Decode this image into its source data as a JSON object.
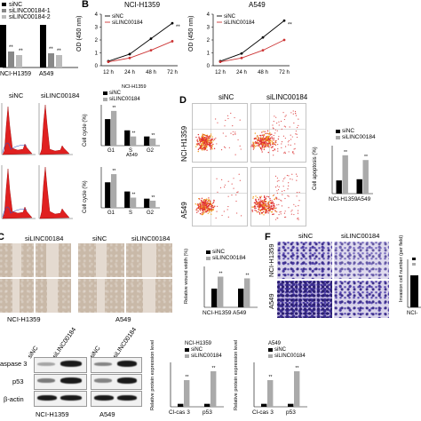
{
  "panels": {
    "A": {
      "legend": [
        "siNC",
        "siLINC00184-1",
        "siLINC00184-2"
      ],
      "xlabels": [
        "NCI-H1359",
        "A549"
      ],
      "sig": [
        "**",
        "**",
        "**",
        "**"
      ]
    },
    "B": {
      "letter": "B",
      "titles": [
        "NCI-H1359",
        "A549"
      ],
      "legend": [
        "siNC",
        "siLINC00184"
      ],
      "ylabel": "OD (450 nm)",
      "xticks": [
        "12 h",
        "24 h",
        "48 h",
        "72 h"
      ],
      "yticks": [
        "0",
        "1",
        "2",
        "3",
        "4"
      ],
      "sig": [
        "**",
        "**",
        "**",
        "**"
      ]
    },
    "C": {
      "headers": [
        "siNC",
        "siLINC00184"
      ],
      "bar_legend": [
        "siNC",
        "siLINC00184"
      ],
      "bar_titles": [
        "NCI-H1359",
        "A549"
      ],
      "ylabel": "Cell cycle (%)",
      "xticks": [
        "G1",
        "S",
        "G2"
      ]
    },
    "D": {
      "letter": "D",
      "headers": [
        "siNC",
        "siLINC00184"
      ],
      "rows": [
        "NCI-H1359",
        "A549"
      ],
      "legend": [
        "siNC",
        "siLINC00184"
      ],
      "ylabel": "Cell apoptosis (%)",
      "xlabels": [
        "NCI-H1359",
        "A549"
      ]
    },
    "E": {
      "letter": "C",
      "headers": [
        "siLINC00184",
        "siNC",
        "siLINC00184"
      ],
      "labels": [
        "NCI-H1359",
        "A549"
      ],
      "legend": [
        "siNC",
        "siLINC00184"
      ],
      "ylabel": "Relative wound width (%)",
      "xlabels": [
        "NCI-H1359",
        "A549"
      ]
    },
    "F": {
      "letter": "F",
      "headers": [
        "siNC",
        "siLINC00184"
      ],
      "rows": [
        "NCI-H1359",
        "A549"
      ],
      "ylabel": "Invasion cell number (per field)",
      "xlabel": "NCI-"
    },
    "G": {
      "headers": [
        "siNC",
        "siLINC00184",
        "siNC",
        "siLINC00184"
      ],
      "rows": [
        "aspase 3",
        "p53",
        "β-actin"
      ],
      "cells": [
        "NCI-H1359",
        "A549"
      ],
      "charts": [
        {
          "title": "NCI-H1359",
          "legend": [
            "siNC",
            "siLINC00184"
          ]
        },
        {
          "title": "A549",
          "legend": [
            "siNC",
            "siLINC00184"
          ]
        }
      ],
      "ylabel": "Relative protein expression level",
      "xticks": [
        "Cl-cas 3",
        "p53"
      ]
    }
  },
  "chart_data": [
    {
      "type": "line",
      "title": "NCI-H1359",
      "xlabel": "",
      "ylabel": "OD (450 nm)",
      "x": [
        "12 h",
        "24 h",
        "48 h",
        "72 h"
      ],
      "ylim": [
        0,
        4
      ],
      "series": [
        {
          "name": "siNC",
          "values": [
            0.35,
            0.9,
            2.1,
            3.3
          ]
        },
        {
          "name": "siLINC00184",
          "values": [
            0.3,
            0.6,
            1.2,
            1.9
          ]
        }
      ],
      "colors": [
        "#000000",
        "#cc3333"
      ]
    },
    {
      "type": "line",
      "title": "A549",
      "xlabel": "",
      "ylabel": "OD (450 nm)",
      "x": [
        "12 h",
        "24 h",
        "48 h",
        "72 h"
      ],
      "ylim": [
        0,
        4
      ],
      "series": [
        {
          "name": "siNC",
          "values": [
            0.35,
            0.95,
            2.2,
            3.5
          ]
        },
        {
          "name": "siLINC00184",
          "values": [
            0.3,
            0.6,
            1.2,
            2.0
          ]
        }
      ],
      "colors": [
        "#000000",
        "#cc3333"
      ]
    },
    {
      "type": "bar",
      "title": "NCI-H1359",
      "ylabel": "Cell cycle (%)",
      "categories": [
        "G1",
        "S",
        "G2"
      ],
      "ylim": [
        0,
        80
      ],
      "series": [
        {
          "name": "siNC",
          "values": [
            52,
            30,
            18
          ]
        },
        {
          "name": "siLINC00184",
          "values": [
            68,
            18,
            14
          ]
        }
      ]
    },
    {
      "type": "bar",
      "title": "A549",
      "ylabel": "Cell cycle (%)",
      "categories": [
        "G1",
        "S",
        "G2"
      ],
      "ylim": [
        0,
        80
      ],
      "series": [
        {
          "name": "siNC",
          "values": [
            50,
            32,
            18
          ]
        },
        {
          "name": "siLINC00184",
          "values": [
            66,
            20,
            14
          ]
        }
      ]
    },
    {
      "type": "bar",
      "ylabel": "Cell apoptosis (%)",
      "categories": [
        "NCI-H1359",
        "A549"
      ],
      "ylim": [
        0,
        40
      ],
      "series": [
        {
          "name": "siNC",
          "values": [
            11,
            12
          ]
        },
        {
          "name": "siLINC00184",
          "values": [
            32,
            28
          ]
        }
      ]
    },
    {
      "type": "bar",
      "ylabel": "Relative wound width (%)",
      "categories": [
        "NCI-H1359",
        "A549"
      ],
      "ylim": [
        0,
        1.2
      ],
      "series": [
        {
          "name": "siNC",
          "values": [
            0.55,
            0.55
          ]
        },
        {
          "name": "siLINC00184",
          "values": [
            0.9,
            0.85
          ]
        }
      ]
    },
    {
      "type": "bar",
      "ylabel": "Relative protein expression level",
      "title": "NCI-H1359",
      "categories": [
        "Cl-cas 3",
        "p53"
      ],
      "ylim": [
        0,
        1.5
      ],
      "series": [
        {
          "name": "siNC",
          "values": [
            0.1,
            0.1
          ]
        },
        {
          "name": "siLINC00184",
          "values": [
            0.9,
            1.2
          ]
        }
      ]
    },
    {
      "type": "bar",
      "ylabel": "Relative protein expression level",
      "title": "A549",
      "categories": [
        "Cl-cas 3",
        "p53"
      ],
      "ylim": [
        0,
        1.5
      ],
      "series": [
        {
          "name": "siNC",
          "values": [
            0.1,
            0.1
          ]
        },
        {
          "name": "siLINC00184",
          "values": [
            0.9,
            1.2
          ]
        }
      ]
    }
  ]
}
